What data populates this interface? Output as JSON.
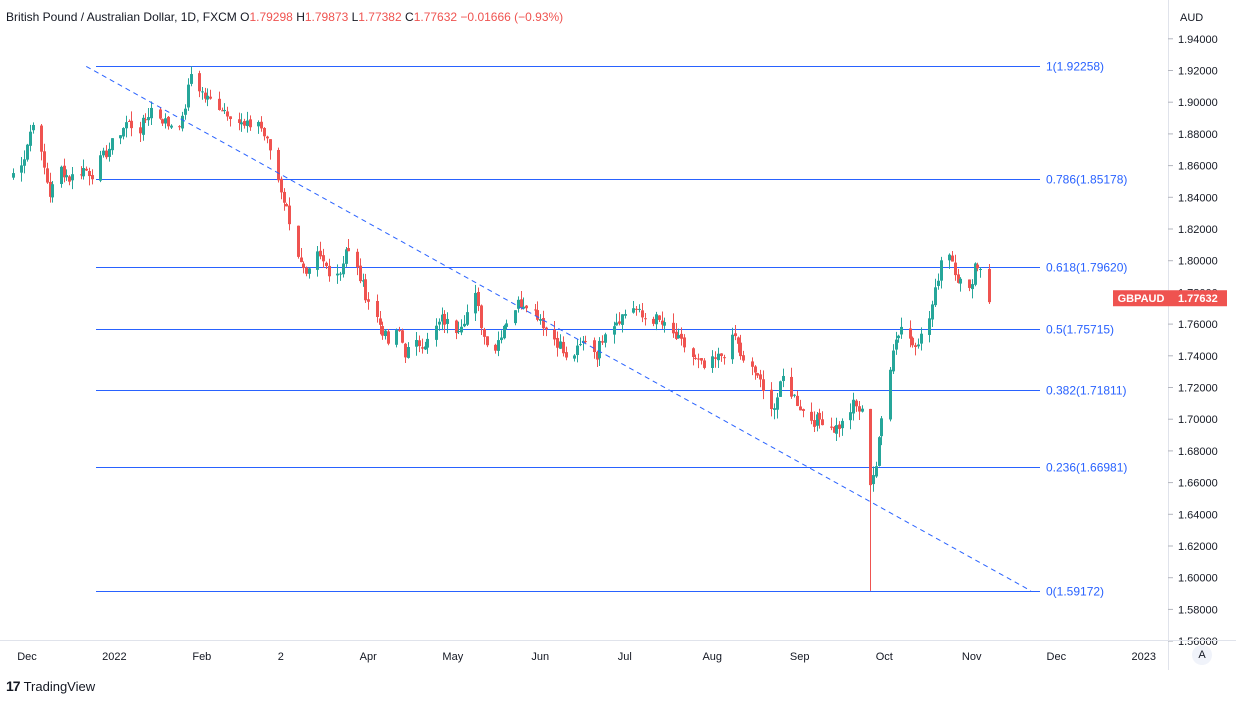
{
  "legend": {
    "symbol": "British Pound / Australian Dollar, 1D, FXCM",
    "o_label": "O",
    "o_value": "1.79298",
    "h_label": "H",
    "h_value": "1.79873",
    "l_label": "L",
    "l_value": "1.77382",
    "c_label": "C",
    "c_value": "1.77632",
    "change": "−0.01666 (−0.93%)"
  },
  "currency_label": "AUD",
  "branding": {
    "text": "TradingView"
  },
  "auto_scale_button": "A",
  "colors": {
    "up": "#26a69a",
    "down": "#ef5350",
    "fib_line": "#2962ff",
    "fib_label": "#2962ff",
    "trend_line": "#2962ff",
    "axis_text": "#131722",
    "price_tag_bg": "#ef5350"
  },
  "chart_data": {
    "type": "candlestick",
    "symbol": "GBPAUD",
    "y_ticks": [
      "1.94000",
      "1.92000",
      "1.90000",
      "1.88000",
      "1.86000",
      "1.84000",
      "1.82000",
      "1.80000",
      "1.78000",
      "1.76000",
      "1.74000",
      "1.72000",
      "1.70000",
      "1.68000",
      "1.66000",
      "1.64000",
      "1.62000",
      "1.60000",
      "1.58000",
      "1.56000"
    ],
    "ylim": [
      1.55,
      1.95
    ],
    "x_ticks": [
      "Dec",
      "2022",
      "Feb",
      "2",
      "Apr",
      "May",
      "Jun",
      "Jul",
      "Aug",
      "Sep",
      "Oct",
      "Nov",
      "Dec",
      "2023"
    ],
    "last_price": {
      "label": "GBPAUD",
      "value": "1.77632"
    },
    "fib_levels": [
      {
        "ratio": "1",
        "price": "1.92258",
        "label": "1(1.92258)"
      },
      {
        "ratio": "0.786",
        "price": "1.85178",
        "label": "0.786(1.85178)"
      },
      {
        "ratio": "0.618",
        "price": "1.79620",
        "label": "0.618(1.79620)"
      },
      {
        "ratio": "0.5",
        "price": "1.75715",
        "label": "0.5(1.75715)"
      },
      {
        "ratio": "0.382",
        "price": "1.71811",
        "label": "0.382(1.71811)"
      },
      {
        "ratio": "0.236",
        "price": "1.66981",
        "label": "0.236(1.66981)"
      },
      {
        "ratio": "0",
        "price": "1.59172",
        "label": "0(1.59172)"
      }
    ],
    "trend_line": {
      "start": {
        "date": "2021-12-22",
        "price": 1.9226
      },
      "end": {
        "date": "2022-11-22",
        "price": 1.5917
      }
    },
    "series_anchors": [
      [
        "2021-11-25",
        1.852
      ],
      [
        "2021-11-30",
        1.866
      ],
      [
        "2021-12-03",
        1.889
      ],
      [
        "2021-12-07",
        1.858
      ],
      [
        "2021-12-09",
        1.842
      ],
      [
        "2021-12-13",
        1.858
      ],
      [
        "2021-12-16",
        1.852
      ],
      [
        "2021-12-21",
        1.858
      ],
      [
        "2021-12-24",
        1.855
      ],
      [
        "2021-12-30",
        1.871
      ],
      [
        "2022-01-05",
        1.887
      ],
      [
        "2022-01-10",
        1.883
      ],
      [
        "2022-01-14",
        1.896
      ],
      [
        "2022-01-20",
        1.886
      ],
      [
        "2022-01-25",
        1.888
      ],
      [
        "2022-01-28",
        1.918
      ],
      [
        "2022-02-02",
        1.903
      ],
      [
        "2022-02-07",
        1.898
      ],
      [
        "2022-02-11",
        1.893
      ],
      [
        "2022-02-16",
        1.884
      ],
      [
        "2022-02-21",
        1.888
      ],
      [
        "2022-02-25",
        1.87
      ],
      [
        "2022-03-01",
        1.845
      ],
      [
        "2022-03-04",
        1.826
      ],
      [
        "2022-03-08",
        1.797
      ],
      [
        "2022-03-10",
        1.788
      ],
      [
        "2022-03-14",
        1.803
      ],
      [
        "2022-03-18",
        1.794
      ],
      [
        "2022-03-22",
        1.793
      ],
      [
        "2022-03-24",
        1.808
      ],
      [
        "2022-03-28",
        1.794
      ],
      [
        "2022-03-31",
        1.779
      ],
      [
        "2022-04-05",
        1.76
      ],
      [
        "2022-04-08",
        1.748
      ],
      [
        "2022-04-12",
        1.755
      ],
      [
        "2022-04-14",
        1.742
      ],
      [
        "2022-04-19",
        1.748
      ],
      [
        "2022-04-22",
        1.749
      ],
      [
        "2022-04-27",
        1.763
      ],
      [
        "2022-05-02",
        1.757
      ],
      [
        "2022-05-05",
        1.764
      ],
      [
        "2022-05-09",
        1.777
      ],
      [
        "2022-05-12",
        1.752
      ],
      [
        "2022-05-16",
        1.745
      ],
      [
        "2022-05-19",
        1.76
      ],
      [
        "2022-05-24",
        1.773
      ],
      [
        "2022-05-27",
        1.774
      ],
      [
        "2022-06-01",
        1.764
      ],
      [
        "2022-06-03",
        1.757
      ],
      [
        "2022-06-08",
        1.747
      ],
      [
        "2022-06-10",
        1.737
      ],
      [
        "2022-06-14",
        1.743
      ],
      [
        "2022-06-17",
        1.751
      ],
      [
        "2022-06-21",
        1.741
      ],
      [
        "2022-06-24",
        1.757
      ],
      [
        "2022-06-29",
        1.764
      ],
      [
        "2022-07-04",
        1.771
      ],
      [
        "2022-07-07",
        1.764
      ],
      [
        "2022-07-12",
        1.763
      ],
      [
        "2022-07-15",
        1.758
      ],
      [
        "2022-07-19",
        1.751
      ],
      [
        "2022-07-22",
        1.746
      ],
      [
        "2022-07-26",
        1.737
      ],
      [
        "2022-07-29",
        1.732
      ],
      [
        "2022-08-02",
        1.737
      ],
      [
        "2022-08-05",
        1.742
      ],
      [
        "2022-08-09",
        1.752
      ],
      [
        "2022-08-12",
        1.735
      ],
      [
        "2022-08-17",
        1.728
      ],
      [
        "2022-08-19",
        1.716
      ],
      [
        "2022-08-23",
        1.708
      ],
      [
        "2022-08-26",
        1.726
      ],
      [
        "2022-08-30",
        1.714
      ],
      [
        "2022-09-02",
        1.705
      ],
      [
        "2022-09-06",
        1.699
      ],
      [
        "2022-09-09",
        1.7
      ],
      [
        "2022-09-13",
        1.694
      ],
      [
        "2022-09-16",
        1.697
      ],
      [
        "2022-09-20",
        1.709
      ],
      [
        "2022-09-23",
        1.704
      ],
      [
        "2022-09-26",
        1.661
      ],
      [
        "2022-09-28",
        1.671
      ],
      [
        "2022-09-30",
        1.7
      ],
      [
        "2022-10-04",
        1.746
      ],
      [
        "2022-10-07",
        1.759
      ],
      [
        "2022-10-11",
        1.748
      ],
      [
        "2022-10-14",
        1.752
      ],
      [
        "2022-10-17",
        1.764
      ],
      [
        "2022-10-19",
        1.78
      ],
      [
        "2022-10-21",
        1.801
      ],
      [
        "2022-10-24",
        1.806
      ],
      [
        "2022-10-27",
        1.789
      ],
      [
        "2022-10-31",
        1.78
      ],
      [
        "2022-11-02",
        1.798
      ],
      [
        "2022-11-04",
        1.796
      ],
      [
        "2022-11-07",
        1.776
      ]
    ],
    "key_extremes": {
      "high": {
        "date": "2022-01-28",
        "price": 1.9226
      },
      "low": {
        "date": "2022-09-26",
        "price": 1.5917
      }
    }
  }
}
